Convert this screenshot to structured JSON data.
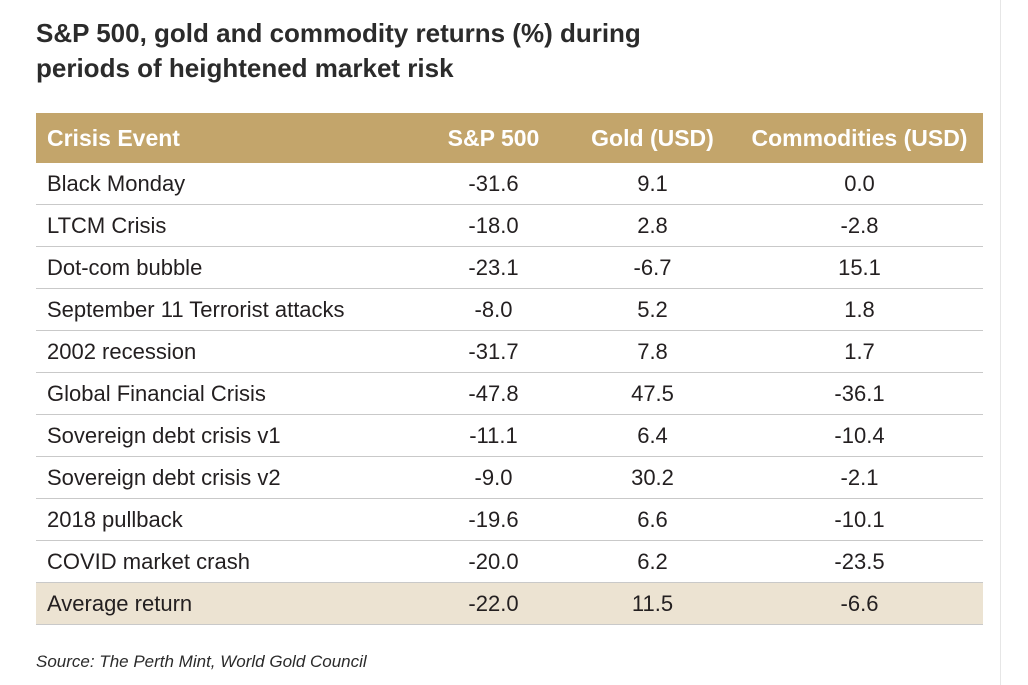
{
  "title": {
    "line1": "S&P 500, gold and commodity returns (%) during",
    "line2": "periods of heightened market risk"
  },
  "source": "Source: The Perth Mint, World Gold Council",
  "colors": {
    "header_background": "#c3a56b",
    "header_text": "#ffffff",
    "average_row_background": "#ece3d2",
    "row_divider": "#c9c9c9"
  },
  "chart_data": {
    "type": "table",
    "title": "S&P 500, gold and commodity returns (%) during periods of heightened market risk",
    "columns": [
      "Crisis Event",
      "S&P 500",
      "Gold (USD)",
      "Commodities (USD)"
    ],
    "rows": [
      [
        "Black  Monday",
        "-31.6",
        "9.1",
        "0.0"
      ],
      [
        "LTCM Crisis",
        "-18.0",
        "2.8",
        "-2.8"
      ],
      [
        "Dot-com bubble",
        "-23.1",
        "-6.7",
        "15.1"
      ],
      [
        "September 11 Terrorist attacks",
        "-8.0",
        "5.2",
        "1.8"
      ],
      [
        "2002 recession",
        "-31.7",
        "7.8",
        "1.7"
      ],
      [
        "Global Financial Crisis",
        "-47.8",
        "47.5",
        "-36.1"
      ],
      [
        "Sovereign debt crisis v1",
        "-11.1",
        "6.4",
        "-10.4"
      ],
      [
        "Sovereign debt crisis v2",
        "-9.0",
        "30.2",
        "-2.1"
      ],
      [
        "2018 pullback",
        "-19.6",
        "6.6",
        "-10.1"
      ],
      [
        "COVID market crash",
        "-20.0",
        "6.2",
        "-23.5"
      ]
    ],
    "summary_row": [
      "Average return",
      "-22.0",
      "11.5",
      "-6.6"
    ]
  }
}
